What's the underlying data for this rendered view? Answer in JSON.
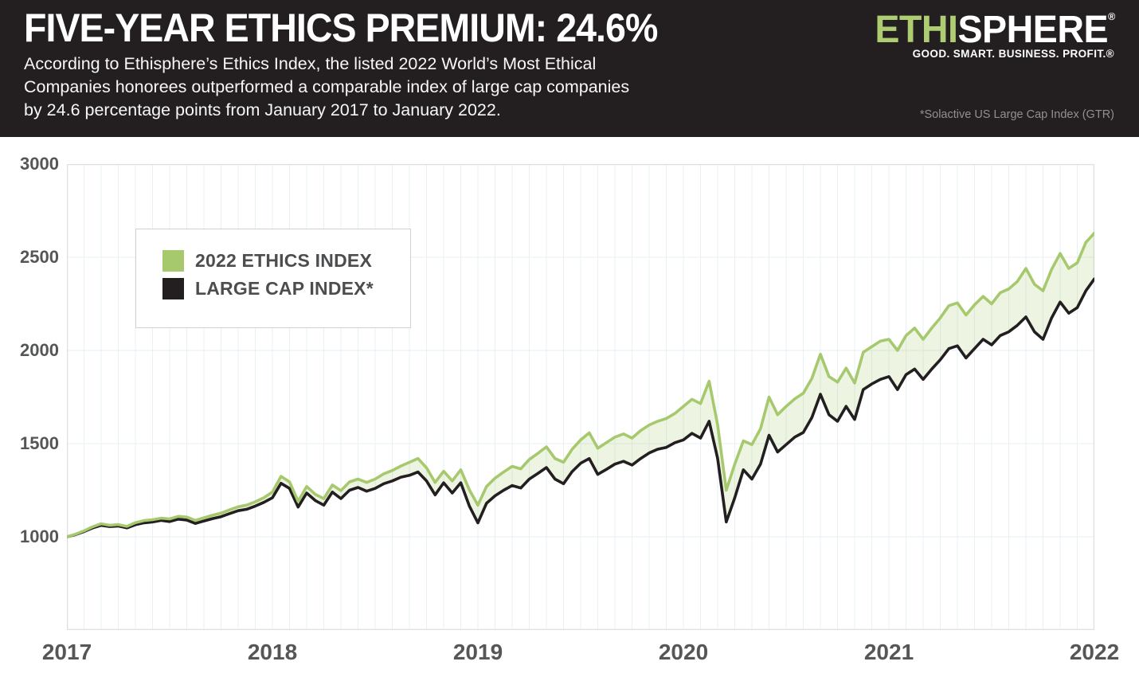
{
  "header": {
    "title": "FIVE-YEAR ETHICS PREMIUM: 24.6%",
    "subtitle_lines": [
      "According to Ethisphere’s Ethics Index, the listed 2022 World’s Most Ethical",
      "Companies honorees outperformed a comparable index of large cap companies",
      "by 24.6 percentage points from January 2017 to January 2022."
    ],
    "logo": {
      "part1": "ETHI",
      "part2": "SPHERE",
      "registered": "®",
      "tagline": "GOOD. SMART. BUSINESS. PROFIT.®"
    },
    "footnote": "*Solactive US Large Cap Index (GTR)"
  },
  "colors": {
    "header_bg": "#231f20",
    "logo_green": "#aecd72",
    "ethics_green": "#a7c96e",
    "large_cap_black": "#231f20",
    "grid_line": "#e7f0f5",
    "plot_border": "#dbe0e4",
    "axis_label": "#555658"
  },
  "chart_data": {
    "type": "line",
    "title": "FIVE-YEAR ETHICS PREMIUM: 24.6%",
    "xlabel": "",
    "ylabel": "",
    "x_tick_labels": [
      "2017",
      "2018",
      "2019",
      "2020",
      "2021",
      "2022"
    ],
    "x_tick_months": [
      0,
      12,
      24,
      36,
      48,
      60
    ],
    "xlim_months": [
      0,
      60
    ],
    "sample_interval_months": 0.5,
    "y_ticks": [
      3000,
      2500,
      2000,
      1500,
      1000
    ],
    "ylim": [
      500,
      3000
    ],
    "grid": "monthly vertical gridlines, horizontal gridlines every 500",
    "legend_position": "upper-left",
    "base_value": 1000,
    "final_premium_points": 246,
    "series": [
      {
        "name": "2022 ETHICS INDEX",
        "color": "#a7c96e",
        "fill_to_other": "rgba(167,201,110,0.20)",
        "values": [
          1000,
          1014,
          1032,
          1054,
          1070,
          1062,
          1066,
          1056,
          1076,
          1087,
          1092,
          1100,
          1096,
          1110,
          1106,
          1088,
          1102,
          1116,
          1127,
          1145,
          1161,
          1170,
          1188,
          1210,
          1240,
          1325,
          1295,
          1190,
          1270,
          1228,
          1205,
          1278,
          1248,
          1295,
          1310,
          1292,
          1310,
          1338,
          1356,
          1380,
          1400,
          1420,
          1370,
          1292,
          1352,
          1300,
          1360,
          1252,
          1170,
          1270,
          1315,
          1348,
          1378,
          1365,
          1415,
          1448,
          1483,
          1420,
          1400,
          1470,
          1520,
          1558,
          1475,
          1505,
          1535,
          1552,
          1530,
          1570,
          1600,
          1620,
          1635,
          1662,
          1700,
          1738,
          1715,
          1835,
          1600,
          1250,
          1390,
          1515,
          1495,
          1580,
          1750,
          1655,
          1700,
          1740,
          1770,
          1850,
          1980,
          1860,
          1830,
          1905,
          1825,
          1990,
          2020,
          2050,
          2060,
          2000,
          2080,
          2120,
          2060,
          2120,
          2175,
          2240,
          2255,
          2190,
          2245,
          2290,
          2250,
          2310,
          2330,
          2370,
          2440,
          2355,
          2320,
          2435,
          2520,
          2440,
          2470,
          2580,
          2630
        ]
      },
      {
        "name": "LARGE CAP INDEX*",
        "color": "#231f20",
        "values": [
          1000,
          1012,
          1028,
          1048,
          1062,
          1055,
          1058,
          1048,
          1065,
          1075,
          1080,
          1088,
          1082,
          1095,
          1090,
          1072,
          1085,
          1098,
          1108,
          1125,
          1140,
          1148,
          1165,
          1185,
          1210,
          1287,
          1260,
          1160,
          1235,
          1195,
          1170,
          1240,
          1205,
          1250,
          1265,
          1245,
          1260,
          1285,
          1300,
          1320,
          1330,
          1348,
          1300,
          1225,
          1290,
          1235,
          1290,
          1165,
          1075,
          1180,
          1220,
          1250,
          1275,
          1262,
          1310,
          1340,
          1372,
          1310,
          1285,
          1350,
          1395,
          1420,
          1335,
          1362,
          1390,
          1405,
          1385,
          1420,
          1450,
          1470,
          1480,
          1505,
          1520,
          1555,
          1530,
          1620,
          1420,
          1080,
          1210,
          1360,
          1310,
          1390,
          1545,
          1455,
          1495,
          1535,
          1560,
          1640,
          1765,
          1655,
          1620,
          1700,
          1630,
          1790,
          1820,
          1845,
          1860,
          1790,
          1870,
          1900,
          1845,
          1900,
          1950,
          2010,
          2025,
          1960,
          2010,
          2060,
          2030,
          2080,
          2100,
          2135,
          2180,
          2100,
          2060,
          2175,
          2260,
          2200,
          2230,
          2320,
          2384
        ]
      }
    ]
  }
}
